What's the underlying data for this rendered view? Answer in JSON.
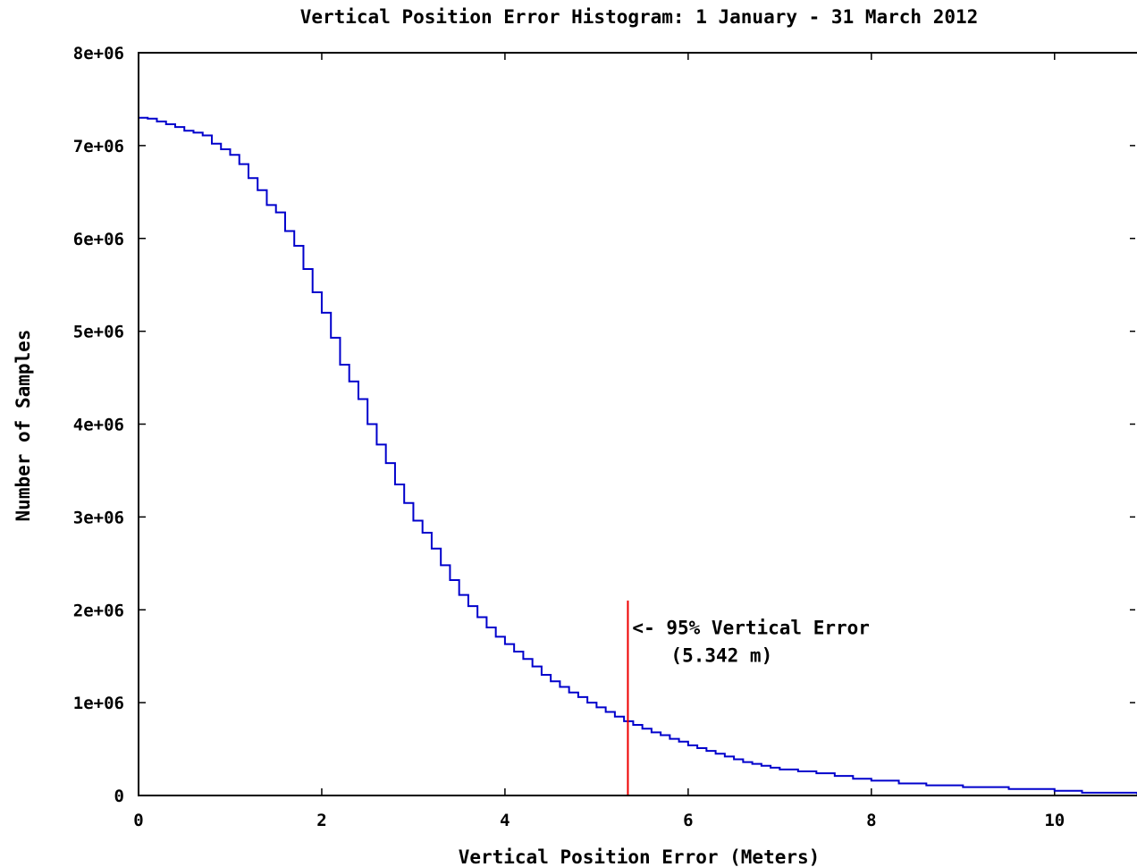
{
  "chart_data": {
    "type": "line",
    "title": "Vertical Position Error Histogram: 1 January - 31 March 2012",
    "xlabel": "Vertical Position Error (Meters)",
    "ylabel": "Number of Samples",
    "xlim": [
      0,
      10.9
    ],
    "ylim": [
      0,
      8000000
    ],
    "x_ticks": [
      0,
      2,
      4,
      6,
      8,
      10
    ],
    "x_tick_labels": [
      "0",
      "2",
      "4",
      "6",
      "8",
      "10"
    ],
    "y_ticks": [
      0,
      1000000,
      2000000,
      3000000,
      4000000,
      5000000,
      6000000,
      7000000,
      8000000
    ],
    "y_tick_labels": [
      "0",
      "1e+06",
      "2e+06",
      "3e+06",
      "4e+06",
      "5e+06",
      "6e+06",
      "7e+06",
      "8e+06"
    ],
    "grid": false,
    "series": [
      {
        "style": "step",
        "color": "#0000cc",
        "x": [
          0.0,
          0.1,
          0.2,
          0.3,
          0.4,
          0.5,
          0.6,
          0.7,
          0.8,
          0.9,
          1.0,
          1.1,
          1.2,
          1.3,
          1.4,
          1.5,
          1.6,
          1.7,
          1.8,
          1.9,
          2.0,
          2.1,
          2.2,
          2.3,
          2.4,
          2.5,
          2.6,
          2.7,
          2.8,
          2.9,
          3.0,
          3.1,
          3.2,
          3.3,
          3.4,
          3.5,
          3.6,
          3.7,
          3.8,
          3.9,
          4.0,
          4.1,
          4.2,
          4.3,
          4.4,
          4.5,
          4.6,
          4.7,
          4.8,
          4.9,
          5.0,
          5.1,
          5.2,
          5.3,
          5.4,
          5.5,
          5.6,
          5.7,
          5.8,
          5.9,
          6.0,
          6.1,
          6.2,
          6.3,
          6.4,
          6.5,
          6.6,
          6.7,
          6.8,
          6.9,
          7.0,
          7.2,
          7.4,
          7.6,
          7.8,
          8.0,
          8.3,
          8.6,
          9.0,
          9.5,
          10.0,
          10.3,
          10.9
        ],
        "y": [
          7300000,
          7290000,
          7260000,
          7230000,
          7200000,
          7160000,
          7140000,
          7110000,
          7020000,
          6960000,
          6900000,
          6800000,
          6650000,
          6520000,
          6360000,
          6280000,
          6080000,
          5920000,
          5670000,
          5420000,
          5200000,
          4930000,
          4640000,
          4460000,
          4270000,
          4000000,
          3780000,
          3580000,
          3350000,
          3150000,
          2960000,
          2830000,
          2660000,
          2480000,
          2320000,
          2160000,
          2040000,
          1920000,
          1810000,
          1710000,
          1630000,
          1550000,
          1470000,
          1390000,
          1300000,
          1230000,
          1170000,
          1110000,
          1060000,
          1000000,
          950000,
          900000,
          850000,
          800000,
          760000,
          720000,
          680000,
          650000,
          610000,
          580000,
          540000,
          510000,
          480000,
          450000,
          420000,
          390000,
          360000,
          340000,
          320000,
          300000,
          280000,
          260000,
          240000,
          210000,
          180000,
          160000,
          130000,
          110000,
          90000,
          70000,
          50000,
          30000,
          15000
        ]
      }
    ],
    "annotations": [
      {
        "type": "vline",
        "x": 5.342,
        "y_top": 2100000,
        "color": "#ee0000"
      },
      {
        "type": "text",
        "line1": "<- 95% Vertical Error",
        "line2": "(5.342 m)"
      }
    ]
  }
}
